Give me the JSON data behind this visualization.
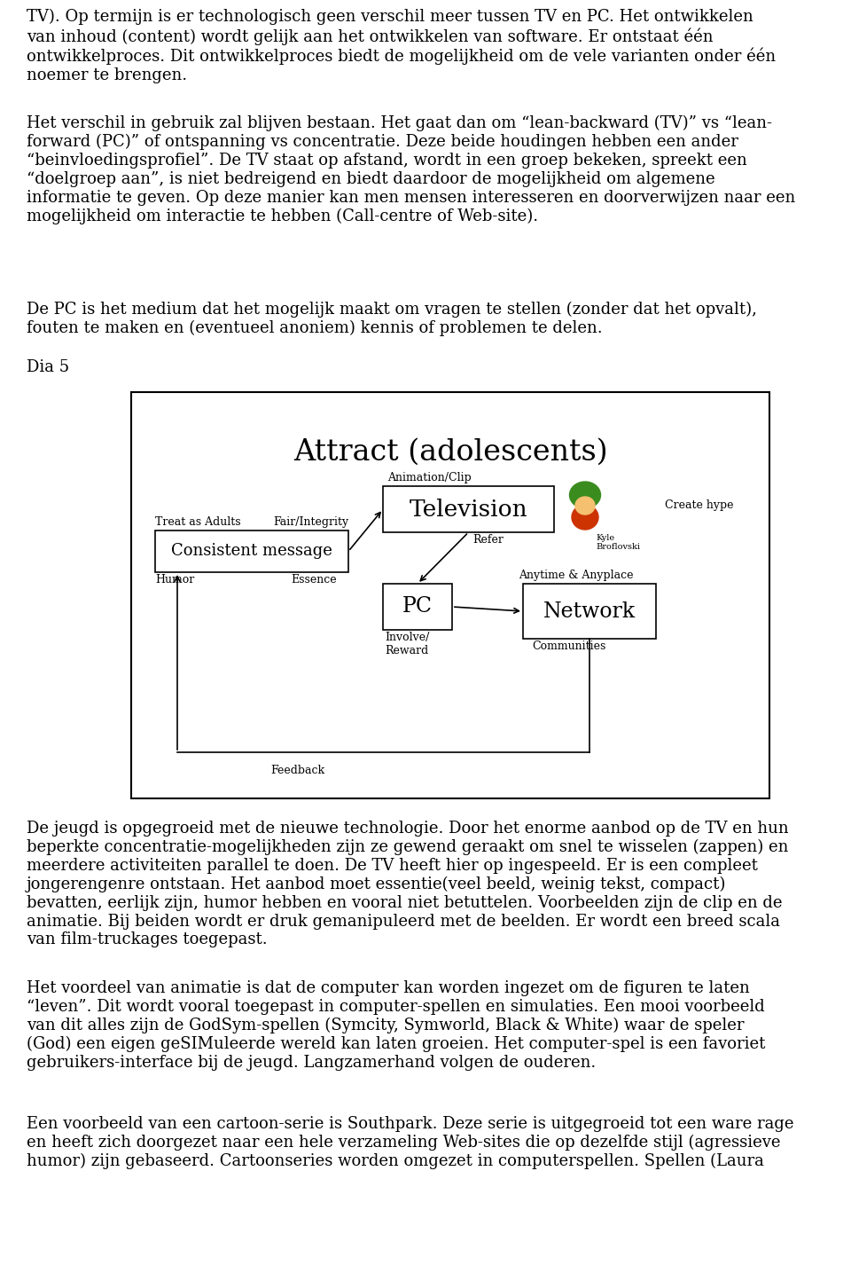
{
  "background_color": "#ffffff",
  "page_width": 9.6,
  "page_height": 14.44,
  "text_color": "#000000",
  "paragraphs": [
    "TV). Op termijn is er technologisch geen verschil meer tussen TV en PC. Het ontwikkelen\nvan inhoud (content) wordt gelijk aan het ontwikkelen van software. Er ontstaat één\nontwikkelproces. Dit ontwikkelproces biedt de mogelijkheid om de vele varianten onder één\nnoemer te brengen.",
    "Het verschil in gebruik zal blijven bestaan. Het gaat dan om “lean-backward (TV)” vs “lean-\nforward (PC)” of ontspanning vs concentratie. Deze beide houdingen hebben een ander\n“beinvloedingsprofiel”. De TV staat op afstand, wordt in een groep bekeken, spreekt een\n“doelgroep aan”, is niet bedreigend en biedt daardoor de mogelijkheid om algemene\ninformatie te geven. Op deze manier kan men mensen interesseren en doorverwijzen naar een\nmogelijkheid om interactie te hebben (Call-centre of Web-site).",
    "De PC is het medium dat het mogelijk maakt om vragen te stellen (zonder dat het opvalt),\nfouten te maken en (eventueel anoniem) kennis of problemen te delen.",
    "Dia 5",
    "De jeugd is opgegroeid met de nieuwe technologie. Door het enorme aanbod op de TV en hun\nbeperkte concentratie-mogelijkheden zijn ze gewend geraakt om snel te wisselen (zappen) en\nmeerdere activiteiten parallel te doen. De TV heeft hier op ingespeeld. Er is een compleet\njongerengenre ontstaan. Het aanbod moet essentie(veel beeld, weinig tekst, compact)\nbevatten, eerlijk zijn, humor hebben en vooral niet betuttelen. Voorbeelden zijn de clip en de\nanimatie. Bij beiden wordt er druk gemanipuleerd met de beelden. Er wordt een breed scala\nvan film-truckages toegepast.",
    "Het voordeel van animatie is dat de computer kan worden ingezet om de figuren te laten\n“leven”. Dit wordt vooral toegepast in computer-spellen en simulaties. Een mooi voorbeeld\nvan dit alles zijn de GodSym-spellen (Symcity, Symworld, Black & White) waar de speler\n(God) een eigen geSIMuleerde wereld kan laten groeien. Het computer-spel is een favoriet\ngebruikers-interface bij de jeugd. Langzamerhand volgen de ouderen.",
    "Een voorbeeld van een cartoon-serie is Southpark. Deze serie is uitgegroeid tot een ware rage\nen heeft zich doorgezet naar een hele verzameling Web-sites die op dezelfde stijl (agressieve\nhumor) zijn gebaseerd. Cartoonseries worden omgezet in computerspellen. Spellen (Laura"
  ],
  "diagram_title": "Attract (adolescents)"
}
